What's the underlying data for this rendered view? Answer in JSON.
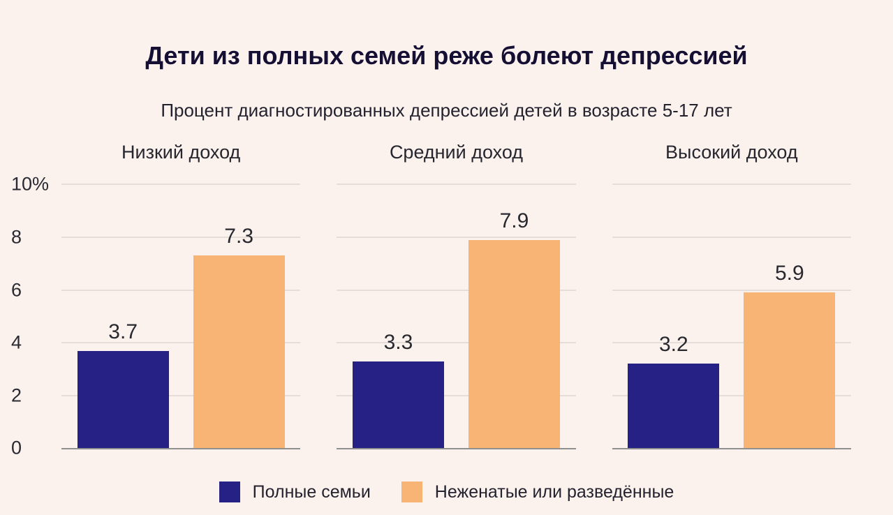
{
  "title": "Дети из полных семей реже болеют депрессией",
  "subtitle": "Процент диагностированных депрессией детей в возрасте 5-17 лет",
  "chart_data": {
    "type": "bar",
    "categories": [
      "Низкий доход",
      "Средний доход",
      "Высокий доход"
    ],
    "series": [
      {
        "name": "Полные семьи",
        "color": "#262184",
        "values": [
          3.7,
          3.3,
          3.2
        ]
      },
      {
        "name": "Неженатые или разведённые",
        "color": "#f8b474",
        "values": [
          7.3,
          7.9,
          5.9
        ]
      }
    ],
    "ylim": [
      0,
      10
    ],
    "yticks": [
      "10%",
      "8",
      "6",
      "4",
      "2",
      "0"
    ],
    "ytick_values": [
      10,
      8,
      6,
      4,
      2,
      0
    ],
    "grid": true,
    "legend_position": "bottom"
  },
  "colors": {
    "background": "#fbf2ee",
    "gridline": "#e5ddd9",
    "axis": "#8f8f8f",
    "title_text": "#150f33",
    "body_text": "#26262f"
  }
}
